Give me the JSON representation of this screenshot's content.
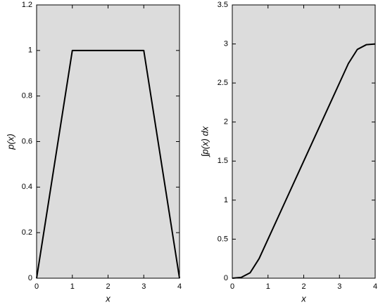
{
  "chart_data": [
    {
      "type": "line",
      "xlabel": "x",
      "ylabel": "p(x)",
      "x": [
        0,
        1,
        3,
        4
      ],
      "values": [
        0,
        1,
        1,
        0
      ],
      "color": "#000000",
      "xlim": [
        0,
        4
      ],
      "xticks": [
        0,
        1,
        2,
        3,
        4
      ],
      "ylim": [
        0,
        1.2
      ],
      "yticks": [
        0,
        0.2,
        0.4,
        0.6,
        0.8,
        1,
        1.2
      ]
    },
    {
      "type": "line",
      "xlabel": "x",
      "ylabel": "∫p(x) dx",
      "x": [
        0,
        0.25,
        0.5,
        0.75,
        1,
        1.5,
        2,
        2.5,
        3,
        3.25,
        3.5,
        3.75,
        4
      ],
      "values": [
        0,
        0.01,
        0.07,
        0.25,
        0.5,
        1.0,
        1.5,
        2.0,
        2.5,
        2.75,
        2.93,
        2.99,
        3.0
      ],
      "color": "#000000",
      "xlim": [
        0,
        4
      ],
      "xticks": [
        0,
        1,
        2,
        3,
        4
      ],
      "ylim": [
        0,
        3.5
      ],
      "yticks": [
        0,
        0.5,
        1,
        1.5,
        2,
        2.5,
        3,
        3.5
      ]
    }
  ]
}
